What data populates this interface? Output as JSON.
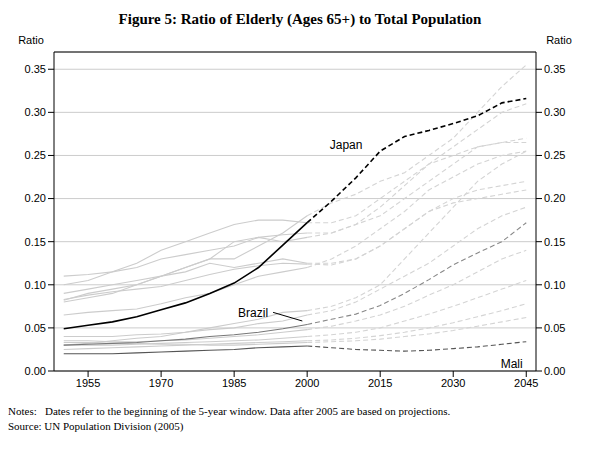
{
  "chart_data": {
    "type": "line",
    "title": "Figure 5: Ratio of Elderly (Ages 65+) to Total Population",
    "ylabel": "Ratio",
    "y2label": "Ratio",
    "notes": "Notes:   Dates refer to the beginning of the 5-year window. Data after 2005 are based on projections.",
    "source": "Source: UN Population Division (2005)",
    "grid": true,
    "x": [
      1950,
      1955,
      1960,
      1965,
      1970,
      1975,
      1980,
      1985,
      1990,
      1995,
      2000,
      2005,
      2010,
      2015,
      2020,
      2025,
      2030,
      2035,
      2040,
      2045
    ],
    "xlim": [
      1948,
      2047
    ],
    "xticks": [
      1955,
      1970,
      1985,
      2000,
      2015,
      2030,
      2045
    ],
    "ylim": [
      0,
      0.37
    ],
    "yticks": [
      {
        "value": 0,
        "label": "0.00"
      },
      {
        "value": 0.05,
        "label": "0.05"
      },
      {
        "value": 0.1,
        "label": "0.10"
      },
      {
        "value": 0.15,
        "label": "0.15"
      },
      {
        "value": 0.2,
        "label": "0.20"
      },
      {
        "value": 0.25,
        "label": "0.25"
      },
      {
        "value": 0.3,
        "label": "0.30"
      },
      {
        "value": 0.35,
        "label": "0.35"
      }
    ],
    "y2lim": [
      0,
      0.37
    ],
    "y2ticks": [
      {
        "value": 0,
        "label": "0.00"
      },
      {
        "value": 0.05,
        "label": "0.05"
      },
      {
        "value": 0.1,
        "label": "0.10"
      },
      {
        "value": 0.15,
        "label": "0.15"
      },
      {
        "value": 0.2,
        "label": "0.20"
      },
      {
        "value": 0.25,
        "label": "0.25"
      },
      {
        "value": 0.3,
        "label": "0.30"
      },
      {
        "value": 0.35,
        "label": "0.35"
      }
    ],
    "series": [
      {
        "color": "#cccccc",
        "line_style": "solid",
        "values": [
          0.1,
          0.105,
          0.115,
          0.125,
          0.14,
          0.15,
          0.16,
          0.17,
          0.175,
          0.175,
          0.172,
          null,
          null,
          null,
          null,
          null,
          null,
          null,
          null,
          null
        ]
      },
      {
        "color": "#d4d4d4",
        "line_style": "dashed",
        "values": [
          null,
          null,
          null,
          null,
          null,
          null,
          null,
          null,
          null,
          null,
          0.172,
          0.172,
          0.18,
          0.2,
          0.22,
          0.24,
          0.25,
          0.26,
          0.265,
          0.27
        ]
      },
      {
        "color": "#cccccc",
        "line_style": "solid",
        "values": [
          0.11,
          0.112,
          0.115,
          0.12,
          0.13,
          0.135,
          0.14,
          0.145,
          0.155,
          0.158,
          0.16,
          null,
          null,
          null,
          null,
          null,
          null,
          null,
          null,
          null
        ]
      },
      {
        "color": "#d4d4d4",
        "line_style": "dashed",
        "values": [
          null,
          null,
          null,
          null,
          null,
          null,
          null,
          null,
          null,
          null,
          0.16,
          0.16,
          0.17,
          0.19,
          0.215,
          0.24,
          0.26,
          0.28,
          0.3,
          0.31
        ]
      },
      {
        "color": "#cccccc",
        "line_style": "solid",
        "values": [
          0.082,
          0.09,
          0.095,
          0.1,
          0.11,
          0.12,
          0.13,
          0.13,
          0.145,
          0.16,
          0.18,
          null,
          null,
          null,
          null,
          null,
          null,
          null,
          null,
          null
        ]
      },
      {
        "color": "#d4d4d4",
        "line_style": "dashed",
        "values": [
          null,
          null,
          null,
          null,
          null,
          null,
          null,
          null,
          null,
          null,
          0.18,
          0.195,
          0.205,
          0.22,
          0.23,
          0.25,
          0.27,
          0.3,
          0.33,
          0.355
        ]
      },
      {
        "color": "#cccccc",
        "line_style": "solid",
        "values": [
          0.08,
          0.085,
          0.09,
          0.1,
          0.11,
          0.12,
          0.13,
          0.15,
          0.155,
          0.15,
          0.155,
          null,
          null,
          null,
          null,
          null,
          null,
          null,
          null,
          null
        ]
      },
      {
        "color": "#d4d4d4",
        "line_style": "dashed",
        "values": [
          null,
          null,
          null,
          null,
          null,
          null,
          null,
          null,
          null,
          null,
          0.155,
          0.16,
          0.17,
          0.18,
          0.2,
          0.22,
          0.24,
          0.26,
          0.265,
          0.265
        ]
      },
      {
        "color": "#cccccc",
        "line_style": "solid",
        "values": [
          0.09,
          0.095,
          0.1,
          0.105,
          0.11,
          0.115,
          0.125,
          0.12,
          0.125,
          0.13,
          0.125,
          null,
          null,
          null,
          null,
          null,
          null,
          null,
          null,
          null
        ]
      },
      {
        "color": "#d4d4d4",
        "line_style": "dashed",
        "values": [
          null,
          null,
          null,
          null,
          null,
          null,
          null,
          null,
          null,
          null,
          0.125,
          0.125,
          0.13,
          0.145,
          0.165,
          0.185,
          0.2,
          0.21,
          0.215,
          0.22
        ]
      },
      {
        "color": "#cccccc",
        "line_style": "solid",
        "values": [
          0.083,
          0.088,
          0.092,
          0.095,
          0.098,
          0.105,
          0.112,
          0.118,
          0.122,
          0.125,
          0.124,
          null,
          null,
          null,
          null,
          null,
          null,
          null,
          null,
          null
        ]
      },
      {
        "color": "#d4d4d4",
        "line_style": "dashed",
        "values": [
          null,
          null,
          null,
          null,
          null,
          null,
          null,
          null,
          null,
          null,
          0.124,
          0.123,
          0.13,
          0.145,
          0.165,
          0.185,
          0.195,
          0.2,
          0.205,
          0.21
        ]
      },
      {
        "color": "#cccccc",
        "line_style": "solid",
        "values": [
          0.065,
          0.068,
          0.07,
          0.072,
          0.078,
          0.085,
          0.09,
          0.1,
          0.11,
          0.115,
          0.12,
          null,
          null,
          null,
          null,
          null,
          null,
          null,
          null,
          null
        ]
      },
      {
        "color": "#d4d4d4",
        "line_style": "dashed",
        "values": [
          null,
          null,
          null,
          null,
          null,
          null,
          null,
          null,
          null,
          null,
          0.12,
          0.13,
          0.145,
          0.165,
          0.185,
          0.21,
          0.225,
          0.24,
          0.25,
          0.255
        ]
      },
      {
        "color": "#cccccc",
        "line_style": "solid",
        "values": [
          0.03,
          0.032,
          0.035,
          0.038,
          0.04,
          0.045,
          0.05,
          0.055,
          0.06,
          0.068,
          0.07,
          null,
          null,
          null,
          null,
          null,
          null,
          null,
          null,
          null
        ]
      },
      {
        "color": "#d4d4d4",
        "line_style": "dashed",
        "values": [
          null,
          null,
          null,
          null,
          null,
          null,
          null,
          null,
          null,
          null,
          0.07,
          0.075,
          0.085,
          0.1,
          0.13,
          0.16,
          0.19,
          0.22,
          0.24,
          0.255
        ]
      },
      {
        "color": "#cccccc",
        "line_style": "solid",
        "values": [
          0.04,
          0.04,
          0.04,
          0.042,
          0.043,
          0.045,
          0.048,
          0.05,
          0.055,
          0.058,
          0.065,
          null,
          null,
          null,
          null,
          null,
          null,
          null,
          null,
          null
        ]
      },
      {
        "color": "#d4d4d4",
        "line_style": "dashed",
        "values": [
          null,
          null,
          null,
          null,
          null,
          null,
          null,
          null,
          null,
          null,
          0.065,
          0.07,
          0.08,
          0.095,
          0.11,
          0.125,
          0.145,
          0.165,
          0.18,
          0.19
        ]
      },
      {
        "color": "#cccccc",
        "line_style": "solid",
        "values": [
          0.035,
          0.035,
          0.034,
          0.034,
          0.035,
          0.036,
          0.038,
          0.04,
          0.042,
          0.045,
          0.048,
          null,
          null,
          null,
          null,
          null,
          null,
          null,
          null,
          null
        ]
      },
      {
        "color": "#d4d4d4",
        "line_style": "dashed",
        "values": [
          null,
          null,
          null,
          null,
          null,
          null,
          null,
          null,
          null,
          null,
          0.048,
          0.052,
          0.058,
          0.065,
          0.075,
          0.088,
          0.1,
          0.115,
          0.13,
          0.14
        ]
      },
      {
        "color": "#cccccc",
        "line_style": "solid",
        "values": [
          0.03,
          0.03,
          0.03,
          0.031,
          0.032,
          0.033,
          0.034,
          0.035,
          0.036,
          0.038,
          0.04,
          null,
          null,
          null,
          null,
          null,
          null,
          null,
          null,
          null
        ]
      },
      {
        "color": "#d4d4d4",
        "line_style": "dashed",
        "values": [
          null,
          null,
          null,
          null,
          null,
          null,
          null,
          null,
          null,
          null,
          0.04,
          0.042,
          0.045,
          0.05,
          0.058,
          0.066,
          0.075,
          0.085,
          0.095,
          0.105
        ]
      },
      {
        "color": "#cccccc",
        "line_style": "solid",
        "values": [
          0.025,
          0.026,
          0.027,
          0.028,
          0.029,
          0.03,
          0.031,
          0.032,
          0.033,
          0.034,
          0.035,
          null,
          null,
          null,
          null,
          null,
          null,
          null,
          null,
          null
        ]
      },
      {
        "color": "#d4d4d4",
        "line_style": "dashed",
        "values": [
          null,
          null,
          null,
          null,
          null,
          null,
          null,
          null,
          null,
          null,
          0.035,
          0.036,
          0.038,
          0.041,
          0.045,
          0.05,
          0.056,
          0.063,
          0.07,
          0.078
        ]
      },
      {
        "color": "#cccccc",
        "line_style": "solid",
        "values": [
          0.033,
          0.033,
          0.032,
          0.032,
          0.031,
          0.031,
          0.03,
          0.03,
          0.031,
          0.032,
          0.033,
          null,
          null,
          null,
          null,
          null,
          null,
          null,
          null,
          null
        ]
      },
      {
        "color": "#d4d4d4",
        "line_style": "dashed",
        "values": [
          null,
          null,
          null,
          null,
          null,
          null,
          null,
          null,
          null,
          null,
          0.033,
          0.034,
          0.035,
          0.037,
          0.04,
          0.043,
          0.047,
          0.052,
          0.057,
          0.062
        ]
      },
      {
        "color": "#777777",
        "line_style": "solid",
        "values": [
          0.03,
          0.031,
          0.032,
          0.033,
          0.035,
          0.037,
          0.04,
          0.042,
          0.045,
          0.049,
          0.054,
          null,
          null,
          null,
          null,
          null,
          null,
          null,
          null,
          null
        ]
      },
      {
        "color": "#888888",
        "line_style": "dashed",
        "values": [
          null,
          null,
          null,
          null,
          null,
          null,
          null,
          null,
          null,
          null,
          0.054,
          0.06,
          0.066,
          0.076,
          0.09,
          0.106,
          0.123,
          0.137,
          0.15,
          0.172
        ]
      },
      {
        "color": "#555555",
        "line_style": "solid",
        "values": [
          0.02,
          0.02,
          0.02,
          0.021,
          0.022,
          0.023,
          0.024,
          0.025,
          0.027,
          0.028,
          0.029,
          null,
          null,
          null,
          null,
          null,
          null,
          null,
          null,
          null
        ]
      },
      {
        "color": "#555555",
        "line_style": "dashed",
        "values": [
          null,
          null,
          null,
          null,
          null,
          null,
          null,
          null,
          null,
          null,
          0.029,
          0.027,
          0.025,
          0.024,
          0.023,
          0.024,
          0.026,
          0.028,
          0.031,
          0.034
        ]
      },
      {
        "color": "#000000",
        "line_style": "solid",
        "values": [
          0.049,
          0.053,
          0.057,
          0.063,
          0.071,
          0.079,
          0.09,
          0.102,
          0.12,
          0.146,
          0.172,
          null,
          null,
          null,
          null,
          null,
          null,
          null,
          null,
          null
        ]
      },
      {
        "color": "#000000",
        "line_style": "dashed",
        "values": [
          null,
          null,
          null,
          null,
          null,
          null,
          null,
          null,
          null,
          null,
          0.172,
          0.197,
          0.224,
          0.255,
          0.272,
          0.279,
          0.287,
          0.296,
          0.311,
          0.316
        ]
      }
    ],
    "annotations": [
      {
        "text": "Japan",
        "x": 2008,
        "y": 0.262
      },
      {
        "text": "Brazil",
        "x": 1993,
        "y": 0.068,
        "arrow_to": [
          1999,
          0.058
        ]
      },
      {
        "text": "Mali",
        "x": 2042,
        "y": 0.008
      }
    ]
  }
}
